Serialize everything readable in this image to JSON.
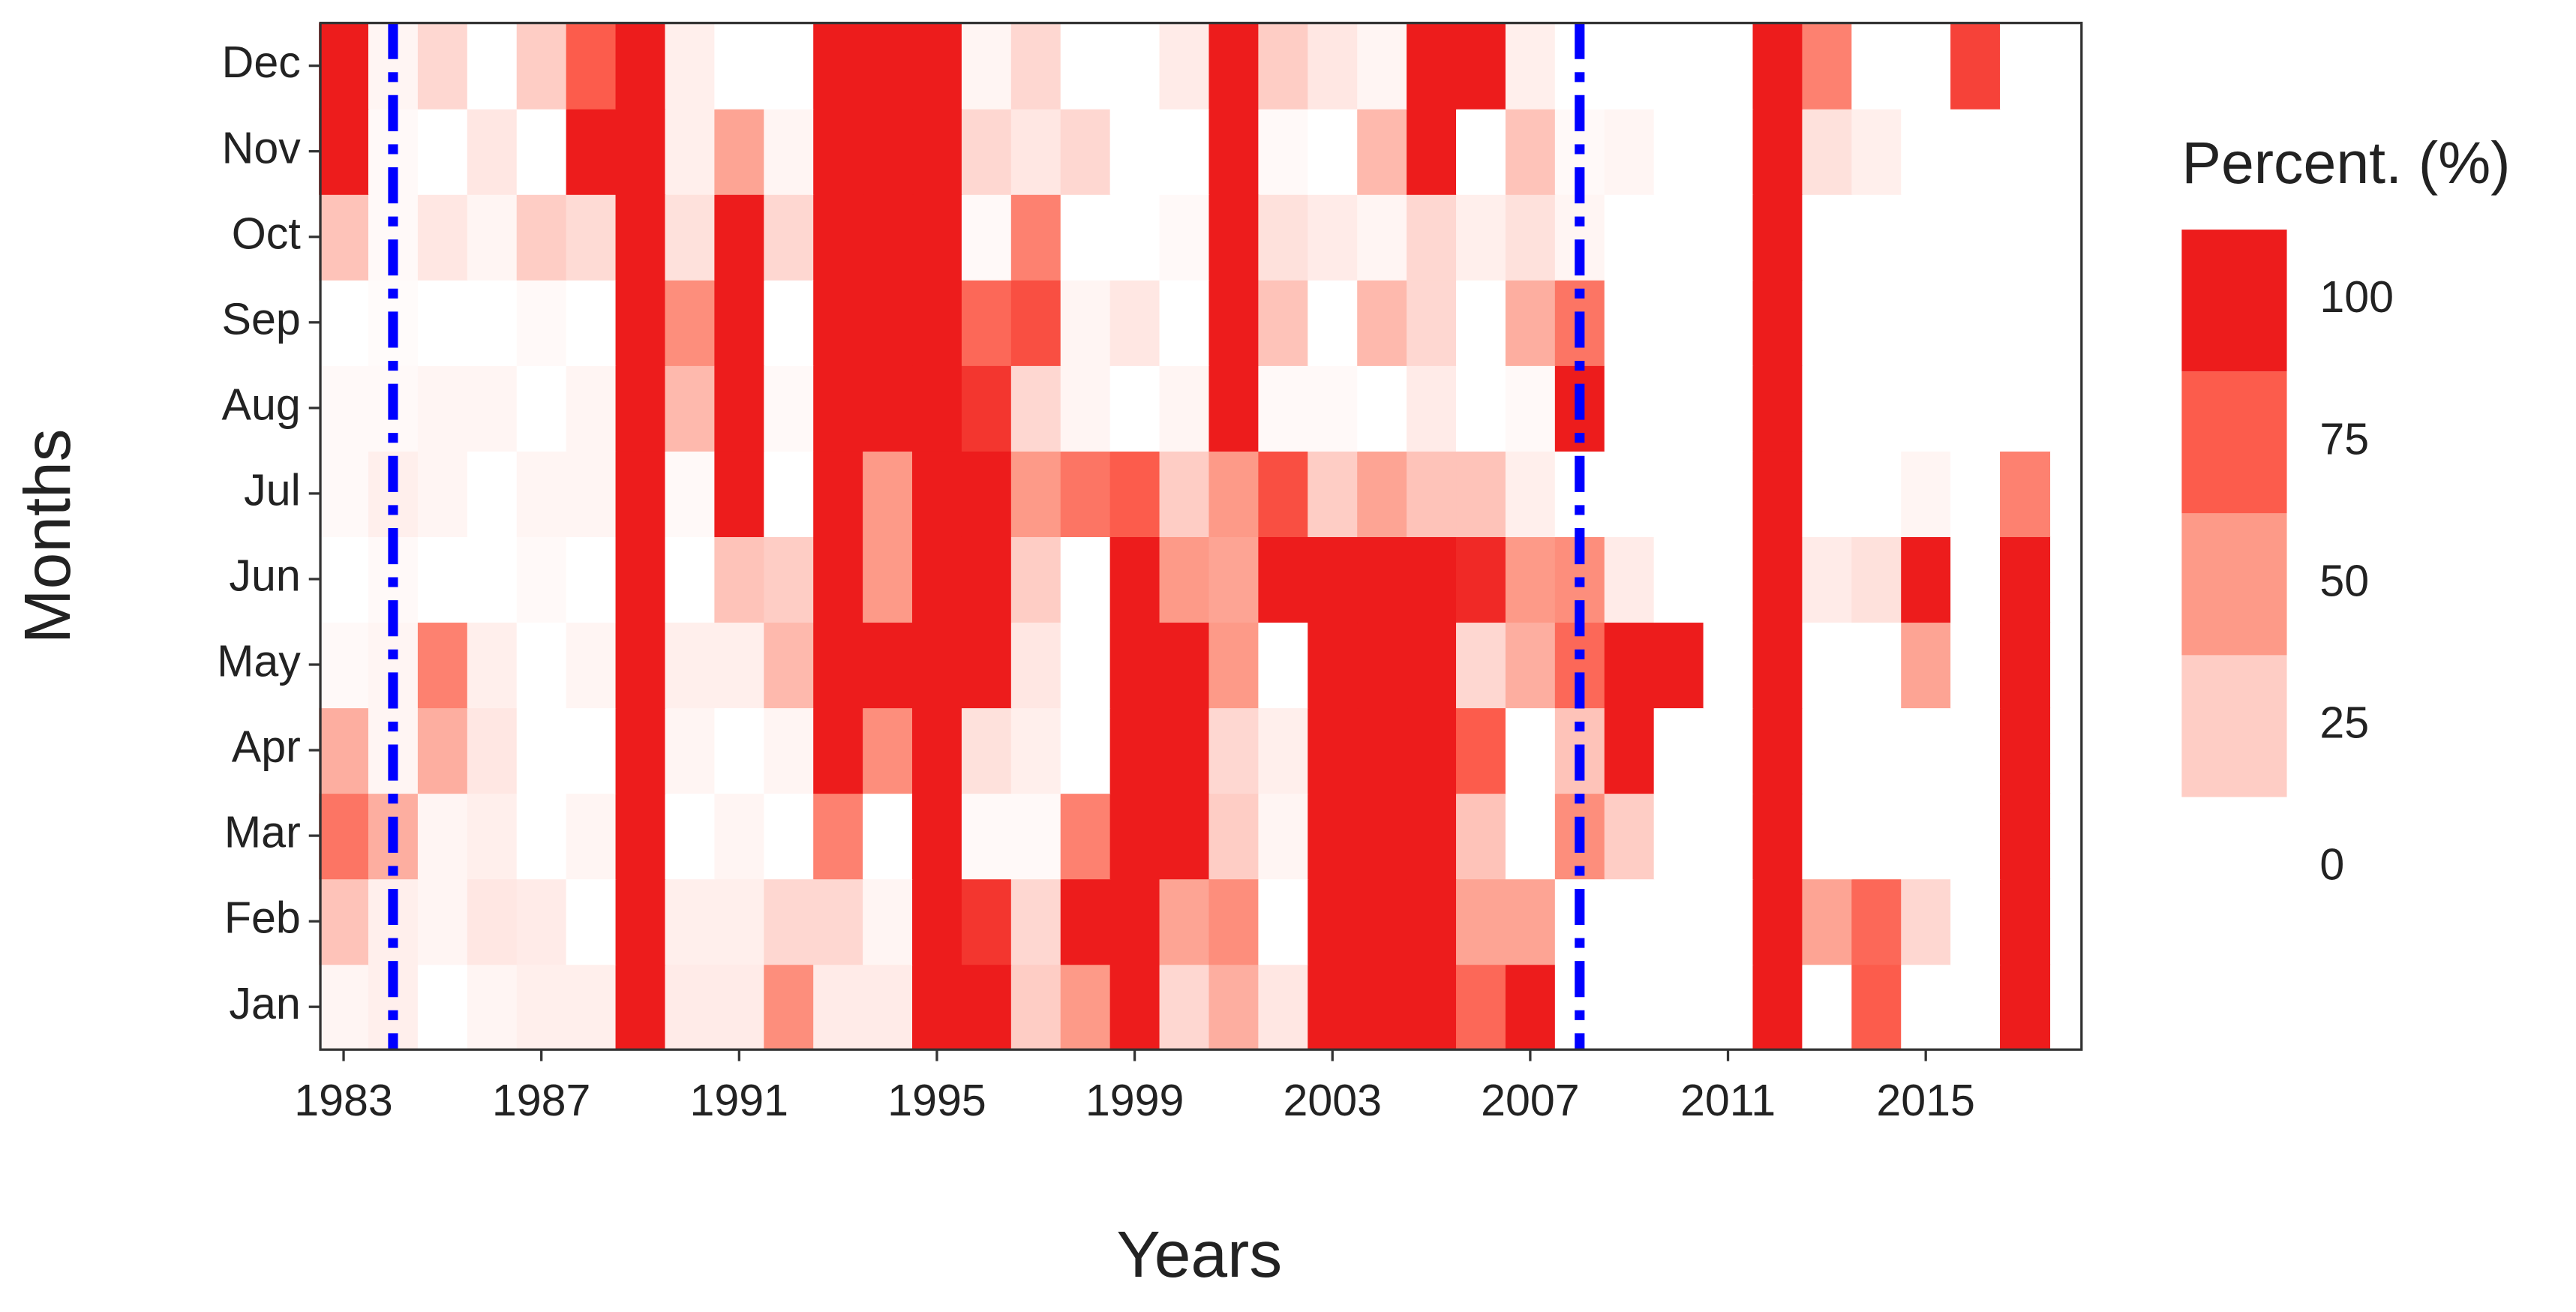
{
  "chart_data": {
    "type": "heatmap",
    "x_label": "Years",
    "y_label": "Months",
    "legend_title": "Percent. (%)",
    "x": [
      1983,
      1984,
      1985,
      1986,
      1987,
      1988,
      1989,
      1990,
      1991,
      1992,
      1993,
      1994,
      1995,
      1996,
      1997,
      1998,
      1999,
      2000,
      2001,
      2002,
      2003,
      2004,
      2005,
      2006,
      2007,
      2008,
      2009,
      2010,
      2011,
      2012,
      2013,
      2014,
      2015,
      2016,
      2017
    ],
    "y_categories": [
      "Jan",
      "Feb",
      "Mar",
      "Apr",
      "May",
      "Jun",
      "Jul",
      "Aug",
      "Sep",
      "Oct",
      "Nov",
      "Dec"
    ],
    "values": [
      [
        5,
        8,
        0,
        5,
        8,
        8,
        100,
        10,
        10,
        55,
        10,
        10,
        100,
        100,
        25,
        50,
        100,
        20,
        40,
        12,
        100,
        100,
        100,
        70,
        100,
        0,
        0,
        0,
        0,
        100,
        0,
        75,
        0,
        0,
        100
      ],
      [
        30,
        8,
        5,
        12,
        10,
        0,
        100,
        8,
        8,
        20,
        20,
        5,
        100,
        90,
        20,
        100,
        100,
        45,
        55,
        0,
        100,
        100,
        100,
        45,
        45,
        0,
        0,
        0,
        0,
        100,
        45,
        70,
        20,
        0,
        100
      ],
      [
        65,
        40,
        5,
        8,
        0,
        5,
        100,
        0,
        5,
        0,
        60,
        0,
        100,
        3,
        3,
        60,
        100,
        100,
        25,
        5,
        100,
        100,
        100,
        30,
        0,
        55,
        25,
        0,
        0,
        100,
        0,
        0,
        0,
        0,
        100
      ],
      [
        40,
        5,
        40,
        12,
        0,
        0,
        100,
        5,
        0,
        5,
        100,
        55,
        100,
        15,
        8,
        0,
        100,
        100,
        20,
        8,
        100,
        100,
        100,
        75,
        0,
        30,
        100,
        0,
        0,
        100,
        0,
        0,
        0,
        0,
        100
      ],
      [
        3,
        5,
        60,
        8,
        0,
        5,
        100,
        8,
        8,
        35,
        100,
        100,
        100,
        100,
        12,
        0,
        100,
        100,
        50,
        0,
        100,
        100,
        100,
        20,
        40,
        70,
        100,
        100,
        0,
        100,
        0,
        0,
        45,
        0,
        100
      ],
      [
        0,
        3,
        0,
        0,
        3,
        0,
        100,
        0,
        30,
        25,
        100,
        50,
        100,
        100,
        25,
        0,
        100,
        50,
        45,
        100,
        100,
        100,
        100,
        95,
        50,
        55,
        10,
        0,
        0,
        100,
        10,
        15,
        100,
        0,
        100
      ],
      [
        3,
        8,
        5,
        0,
        5,
        5,
        100,
        3,
        100,
        0,
        100,
        50,
        100,
        100,
        50,
        65,
        75,
        25,
        50,
        80,
        25,
        45,
        30,
        30,
        8,
        0,
        0,
        0,
        0,
        100,
        0,
        0,
        5,
        0,
        60
      ],
      [
        3,
        3,
        5,
        5,
        0,
        5,
        100,
        35,
        100,
        3,
        100,
        100,
        100,
        90,
        20,
        5,
        0,
        5,
        100,
        3,
        3,
        0,
        10,
        0,
        3,
        100,
        0,
        0,
        0,
        100,
        0,
        0,
        0,
        0,
        0
      ],
      [
        0,
        2,
        0,
        0,
        3,
        0,
        100,
        55,
        100,
        0,
        100,
        100,
        100,
        70,
        80,
        5,
        12,
        0,
        100,
        30,
        0,
        35,
        20,
        0,
        40,
        65,
        0,
        0,
        0,
        100,
        0,
        0,
        0,
        0,
        0
      ],
      [
        30,
        3,
        12,
        5,
        25,
        18,
        100,
        15,
        100,
        20,
        100,
        100,
        100,
        3,
        60,
        0,
        0,
        3,
        100,
        15,
        10,
        5,
        20,
        8,
        15,
        5,
        0,
        0,
        0,
        100,
        0,
        0,
        0,
        0,
        0
      ],
      [
        100,
        3,
        0,
        12,
        0,
        100,
        100,
        8,
        45,
        5,
        100,
        100,
        100,
        20,
        12,
        20,
        0,
        0,
        100,
        3,
        0,
        35,
        100,
        0,
        30,
        3,
        5,
        0,
        0,
        100,
        15,
        8,
        0,
        0,
        0
      ],
      [
        100,
        5,
        20,
        0,
        25,
        75,
        100,
        8,
        0,
        0,
        100,
        100,
        100,
        5,
        20,
        0,
        0,
        10,
        100,
        25,
        12,
        5,
        100,
        100,
        8,
        0,
        0,
        0,
        0,
        100,
        60,
        0,
        0,
        85,
        0
      ]
    ],
    "xlim": [
      1982.53,
      2018.15
    ],
    "xticks": [
      1983,
      1987,
      1991,
      1995,
      1999,
      2003,
      2007,
      2011,
      2015
    ],
    "legend_ticks": [
      0,
      25,
      50,
      75,
      100
    ],
    "color_scale": [
      "#ffffff",
      "#fecdc5",
      "#fd9a88",
      "#fc5c4c",
      "#ed1c1c"
    ],
    "vlines": [
      1984,
      2008
    ],
    "vline_color": "#0000ff"
  }
}
